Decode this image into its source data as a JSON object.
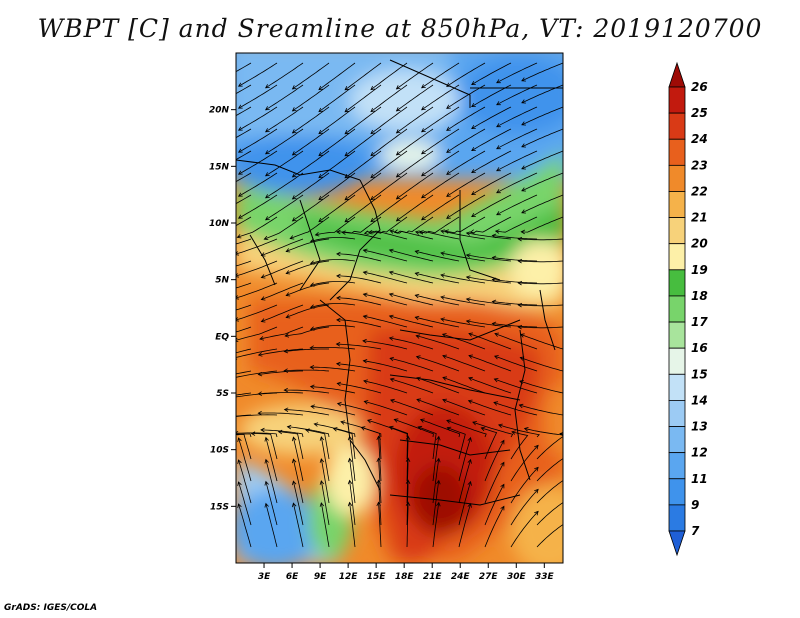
{
  "title": "WBPT [C] and Sreamline at 850hPa, VT: 2019120700",
  "credit": "GrADS: IGES/COLA",
  "map": {
    "lon_range": [
      0,
      35
    ],
    "lat_range": [
      -20,
      25
    ],
    "lon_ticks": [
      "3E",
      "6E",
      "9E",
      "12E",
      "15E",
      "18E",
      "21E",
      "24E",
      "27E",
      "30E",
      "33E"
    ],
    "lat_ticks": [
      "20N",
      "15N",
      "10N",
      "5N",
      "EQ",
      "5S",
      "10S",
      "15S"
    ]
  },
  "colorbar": {
    "labels": [
      "7",
      "9",
      "11",
      "12",
      "13",
      "14",
      "15",
      "16",
      "17",
      "18",
      "19",
      "20",
      "21",
      "22",
      "23",
      "24",
      "25",
      "26"
    ],
    "colors": [
      "#1f5fd6",
      "#2b7be3",
      "#3f93ec",
      "#5aa6f0",
      "#7ab9f2",
      "#9ccbf4",
      "#c2e1f7",
      "#e6f5e8",
      "#a8e49c",
      "#78d46b",
      "#47bd3f",
      "#fdf0a8",
      "#f7d27a",
      "#f5b24a",
      "#f08a2a",
      "#e8601d",
      "#d93a16",
      "#c21a0e",
      "#9e0b06"
    ]
  }
}
